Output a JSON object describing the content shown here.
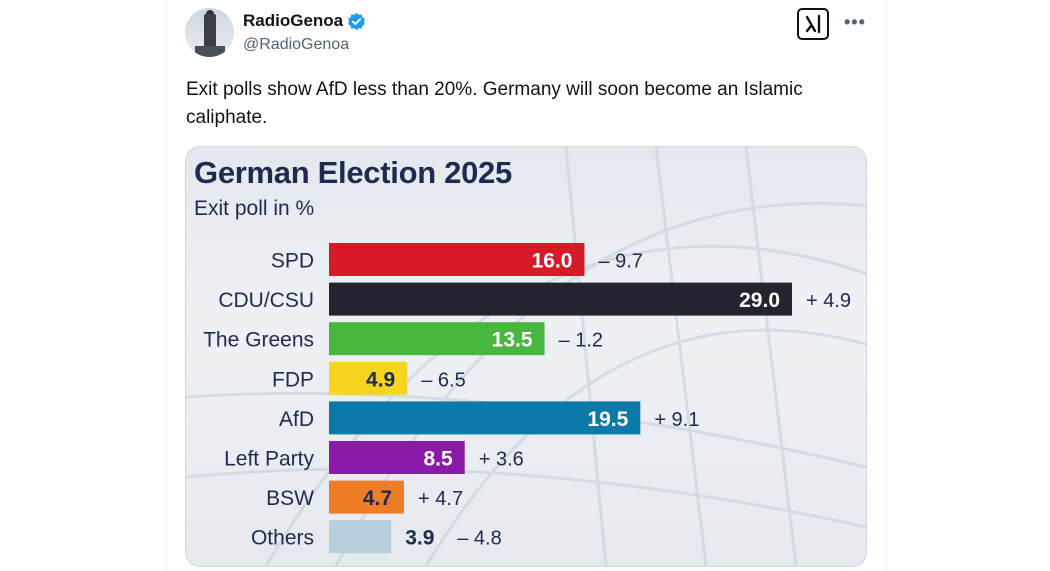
{
  "post": {
    "author_name": "RadioGenoa",
    "author_handle": "@RadioGenoa",
    "text": "Exit polls show AfD less than 20%. Germany will soon become an Islamic caliphate.",
    "grok_icon": "grok-icon",
    "more_icon": "more-icon",
    "verified_color": "#1d9bf0"
  },
  "chart_data": {
    "type": "bar",
    "orientation": "horizontal",
    "title": "German Election 2025",
    "subtitle": "Exit poll in %",
    "categories": [
      "SPD",
      "CDU/CSU",
      "The Greens",
      "FDP",
      "AfD",
      "Left Party",
      "BSW",
      "Others"
    ],
    "values": [
      16.0,
      29.0,
      13.5,
      4.9,
      19.5,
      8.5,
      4.7,
      3.9
    ],
    "value_labels": [
      "16.0",
      "29.0",
      "13.5",
      "4.9",
      "19.5",
      "8.5",
      "4.7",
      "3.9"
    ],
    "change_labels": [
      "– 9.7",
      "+ 4.9",
      "– 1.2",
      "– 6.5",
      "+ 9.1",
      "+ 3.6",
      "+ 4.7",
      "– 4.8"
    ],
    "colors": [
      "#d71a28",
      "#22252d",
      "#47b73e",
      "#f6d51e",
      "#0b7aa9",
      "#8a1aa8",
      "#ef7d26",
      "#b7cfdc"
    ],
    "value_text_colors": [
      "#ffffff",
      "#ffffff",
      "#ffffff",
      "#1d2b50",
      "#ffffff",
      "#ffffff",
      "#1d2b50",
      "#1d2b50"
    ],
    "xlim": [
      0,
      29.0
    ],
    "grid": false,
    "legend": "none"
  }
}
